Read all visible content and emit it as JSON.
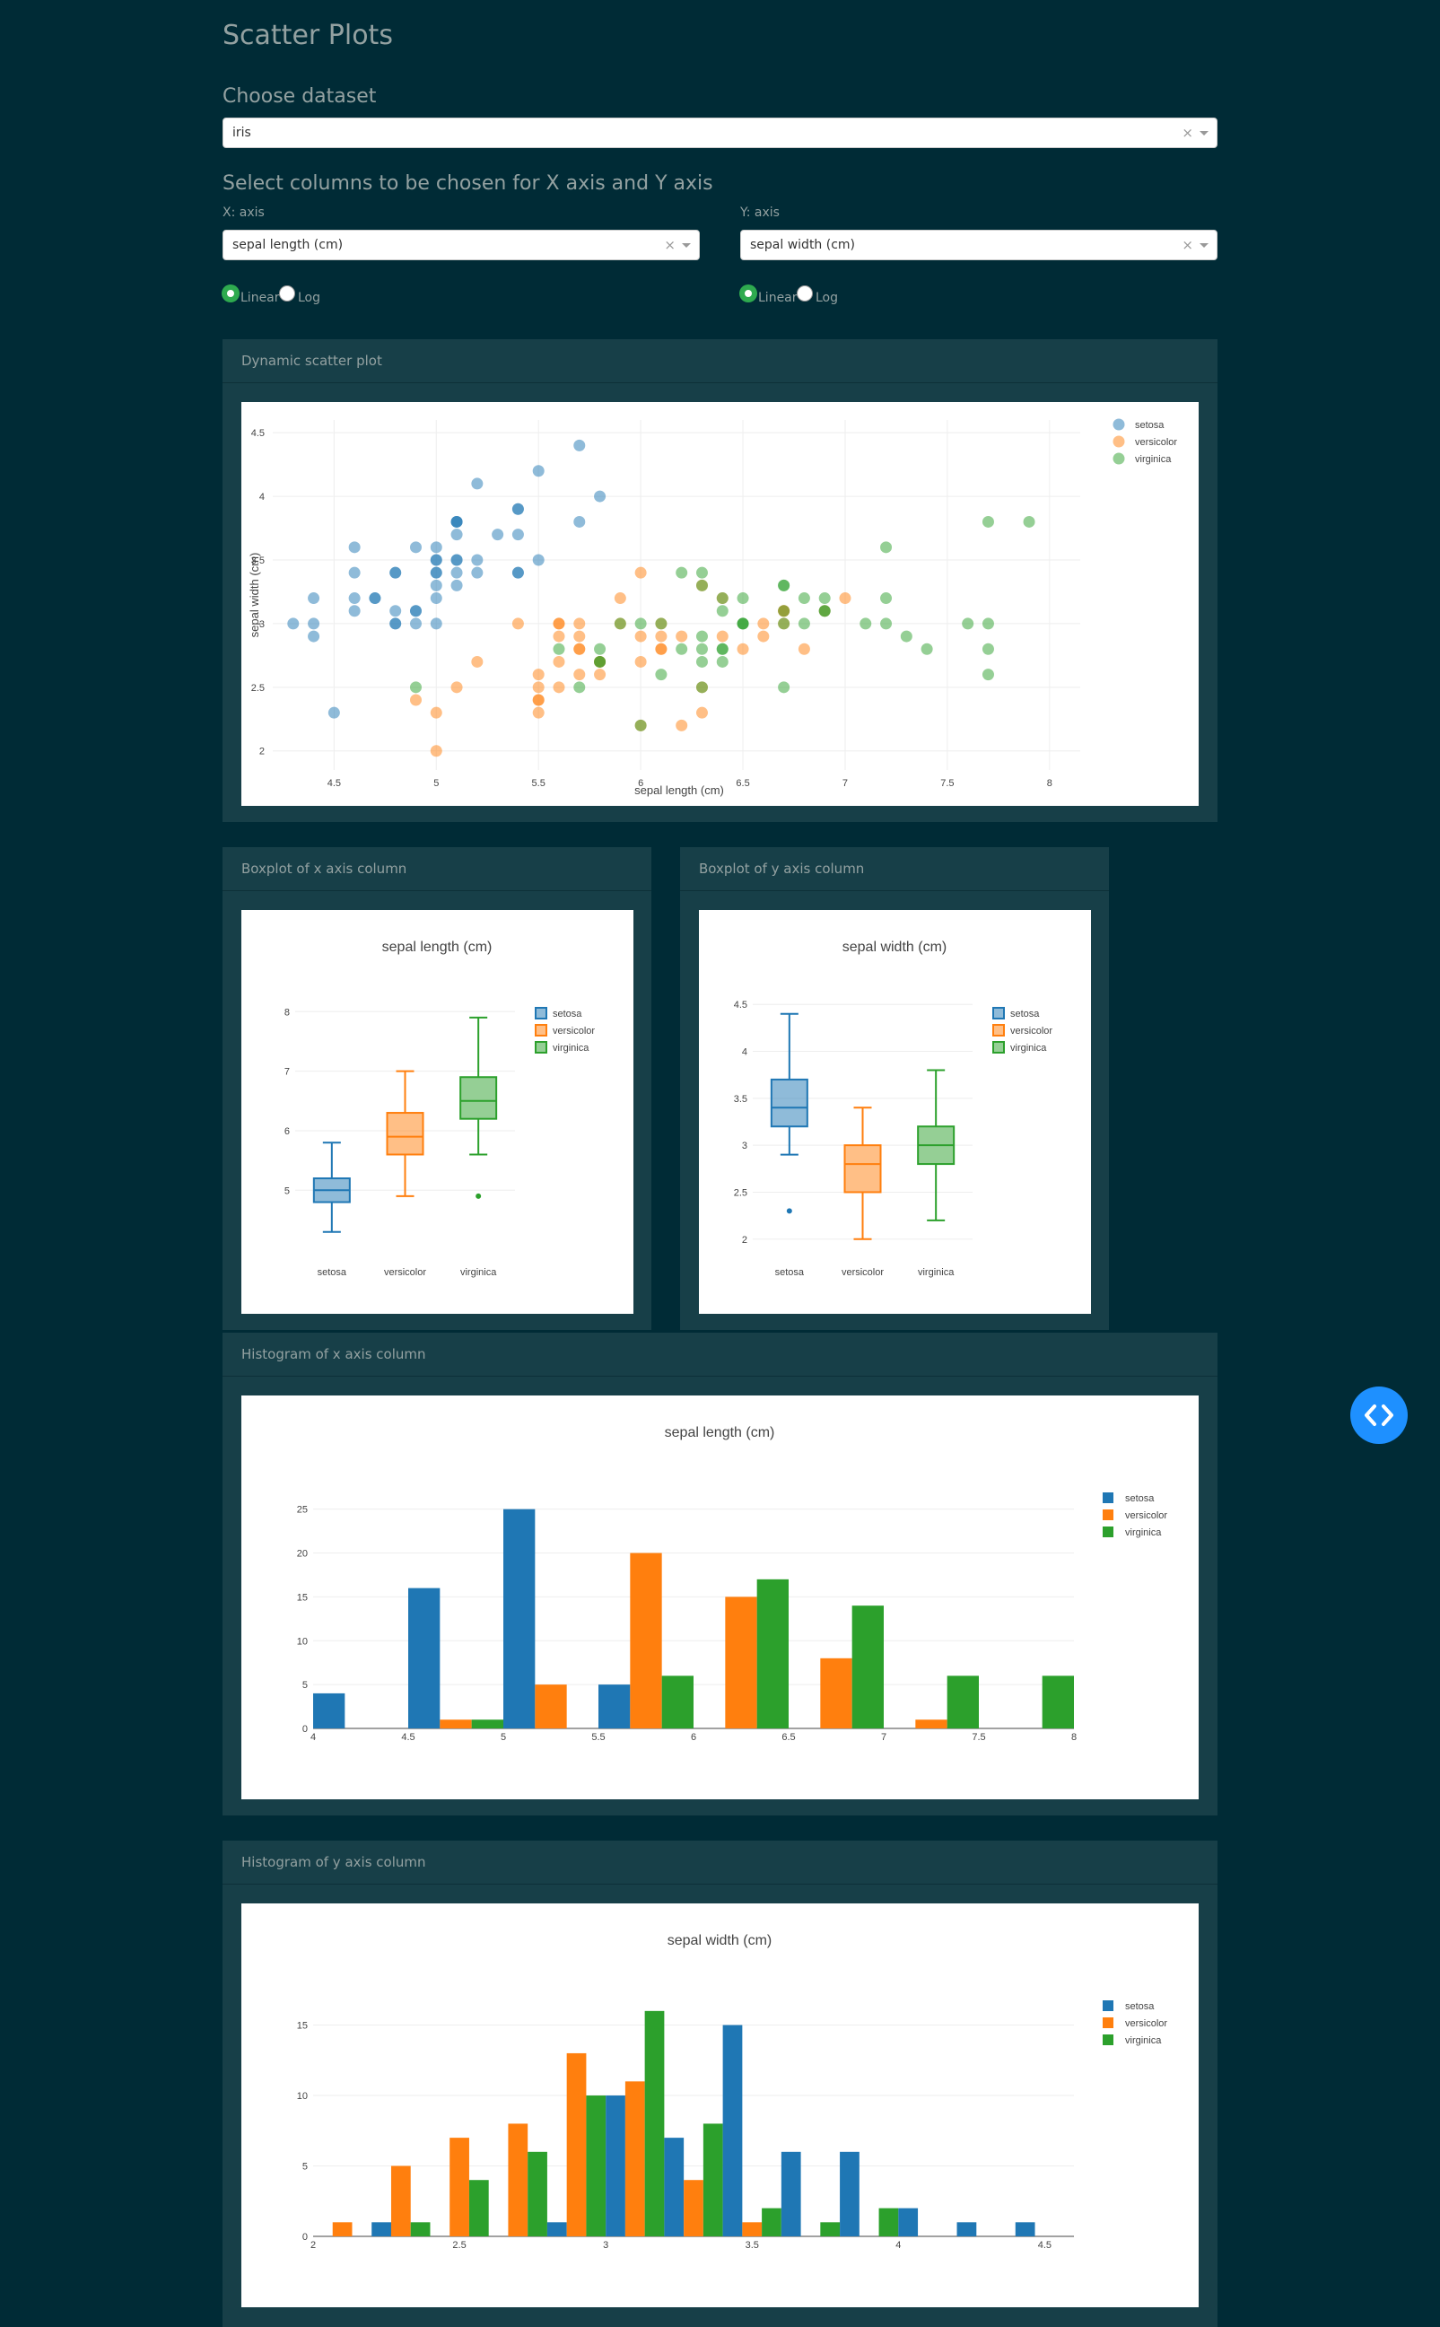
{
  "page": {
    "title": "Scatter Plots"
  },
  "dataset": {
    "label": "Choose dataset",
    "value": "iris",
    "clear": "×"
  },
  "columns": {
    "label": "Select columns to be chosen for X axis and Y axis",
    "x": {
      "label": "X: axis",
      "value": "sepal length (cm)",
      "clear": "×",
      "scale_options": [
        "Linear",
        "Log"
      ],
      "scale_selected": "Linear"
    },
    "y": {
      "label": "Y: axis",
      "value": "sepal width (cm)",
      "clear": "×",
      "scale_options": [
        "Linear",
        "Log"
      ],
      "scale_selected": "Linear"
    }
  },
  "panels": {
    "scatter": "Dynamic scatter plot",
    "box_x": "Boxplot of x axis column",
    "box_y": "Boxplot of y axis column",
    "hist_x": "Histogram of x axis column",
    "hist_y": "Histogram of y axis column"
  },
  "colors": {
    "setosa": "#1f77b4",
    "versicolor": "#ff7f0e",
    "virginica": "#2ca02c",
    "background": "#002b36",
    "panel": "#173f48",
    "accent": "#2eaa4f",
    "fab": "#1e90ff"
  },
  "icons": {
    "fab": "code-toggle-icon"
  },
  "chart_data": [
    {
      "type": "scatter",
      "xlabel": "sepal length (cm)",
      "ylabel": "sepal width (cm)",
      "xlim": [
        4.2,
        8.15
      ],
      "ylim": [
        1.85,
        4.6
      ],
      "xticks": [
        4.5,
        5,
        5.5,
        6,
        6.5,
        7,
        7.5,
        8
      ],
      "yticks": [
        2,
        2.5,
        3,
        3.5,
        4,
        4.5
      ],
      "legend": "top-right",
      "series": [
        {
          "name": "setosa",
          "x": [
            5.1,
            4.9,
            4.7,
            4.6,
            5.0,
            5.4,
            4.6,
            5.0,
            4.4,
            4.9,
            5.4,
            4.8,
            4.8,
            4.3,
            5.8,
            5.7,
            5.4,
            5.1,
            5.7,
            5.1,
            5.4,
            5.1,
            4.6,
            5.1,
            4.8,
            5.0,
            5.0,
            5.2,
            5.2,
            4.7,
            4.8,
            5.4,
            5.2,
            5.5,
            4.9,
            5.0,
            5.5,
            4.9,
            4.4,
            5.1,
            5.0,
            4.5,
            4.4,
            5.0,
            5.1,
            4.8,
            5.1,
            4.6,
            5.3,
            5.0
          ],
          "y": [
            3.5,
            3.0,
            3.2,
            3.1,
            3.6,
            3.9,
            3.4,
            3.4,
            2.9,
            3.1,
            3.7,
            3.4,
            3.0,
            3.0,
            4.0,
            4.4,
            3.9,
            3.5,
            3.8,
            3.8,
            3.4,
            3.7,
            3.6,
            3.3,
            3.4,
            3.0,
            3.4,
            3.5,
            3.4,
            3.2,
            3.1,
            3.4,
            4.1,
            4.2,
            3.1,
            3.2,
            3.5,
            3.6,
            3.0,
            3.4,
            3.5,
            2.3,
            3.2,
            3.5,
            3.8,
            3.0,
            3.8,
            3.2,
            3.7,
            3.3
          ]
        },
        {
          "name": "versicolor",
          "x": [
            7.0,
            6.4,
            6.9,
            5.5,
            6.5,
            5.7,
            6.3,
            4.9,
            6.6,
            5.2,
            5.0,
            5.9,
            6.0,
            6.1,
            5.6,
            6.7,
            5.6,
            5.8,
            6.2,
            5.6,
            5.9,
            6.1,
            6.3,
            6.1,
            6.4,
            6.6,
            6.8,
            6.7,
            6.0,
            5.7,
            5.5,
            5.5,
            5.8,
            6.0,
            5.4,
            6.0,
            6.7,
            6.3,
            5.6,
            5.5,
            5.5,
            6.1,
            5.8,
            5.0,
            5.6,
            5.7,
            5.7,
            6.2,
            5.1,
            5.7
          ],
          "y": [
            3.2,
            3.2,
            3.1,
            2.3,
            2.8,
            2.8,
            3.3,
            2.4,
            2.9,
            2.7,
            2.0,
            3.0,
            2.2,
            2.9,
            2.9,
            3.1,
            3.0,
            2.7,
            2.2,
            2.5,
            3.2,
            2.8,
            2.5,
            2.8,
            2.9,
            3.0,
            2.8,
            3.0,
            2.9,
            2.6,
            2.4,
            2.4,
            2.7,
            2.7,
            3.0,
            3.4,
            3.1,
            2.3,
            3.0,
            2.5,
            2.6,
            3.0,
            2.6,
            2.3,
            2.7,
            3.0,
            2.9,
            2.9,
            2.5,
            2.8
          ]
        },
        {
          "name": "virginica",
          "x": [
            6.3,
            5.8,
            7.1,
            6.3,
            6.5,
            7.6,
            4.9,
            7.3,
            6.7,
            7.2,
            6.5,
            6.4,
            6.8,
            5.7,
            5.8,
            6.4,
            6.5,
            7.7,
            7.7,
            6.0,
            6.9,
            5.6,
            7.7,
            6.3,
            6.7,
            7.2,
            6.2,
            6.1,
            6.4,
            7.2,
            7.4,
            7.9,
            6.4,
            6.3,
            6.1,
            7.7,
            6.3,
            6.4,
            6.0,
            6.9,
            6.7,
            6.9,
            5.8,
            6.8,
            6.7,
            6.7,
            6.3,
            6.5,
            6.2,
            5.9
          ],
          "y": [
            3.3,
            2.7,
            3.0,
            2.9,
            3.0,
            3.0,
            2.5,
            2.9,
            2.5,
            3.6,
            3.2,
            2.7,
            3.0,
            2.5,
            2.8,
            3.2,
            3.0,
            3.8,
            2.6,
            2.2,
            3.2,
            2.8,
            2.8,
            2.7,
            3.3,
            3.2,
            2.8,
            3.0,
            2.8,
            3.0,
            2.8,
            3.8,
            2.8,
            2.8,
            2.6,
            3.0,
            3.4,
            3.1,
            3.0,
            3.1,
            3.1,
            3.1,
            2.7,
            3.2,
            3.3,
            3.0,
            2.5,
            3.0,
            3.4,
            3.0
          ]
        }
      ]
    },
    {
      "type": "box",
      "title": "sepal length (cm)",
      "categories": [
        "setosa",
        "versicolor",
        "virginica"
      ],
      "ylim": [
        4.1,
        8.2
      ],
      "yticks": [
        5,
        6,
        7,
        8
      ],
      "legend": "top-right",
      "boxes": [
        {
          "name": "setosa",
          "min": 4.3,
          "q1": 4.8,
          "median": 5.0,
          "q3": 5.2,
          "max": 5.8,
          "outliers": []
        },
        {
          "name": "versicolor",
          "min": 4.9,
          "q1": 5.6,
          "median": 5.9,
          "q3": 6.3,
          "max": 7.0,
          "outliers": []
        },
        {
          "name": "virginica",
          "min": 5.6,
          "q1": 6.2,
          "median": 6.5,
          "q3": 6.9,
          "max": 7.9,
          "outliers": [
            4.9
          ]
        }
      ]
    },
    {
      "type": "box",
      "title": "sepal width (cm)",
      "categories": [
        "setosa",
        "versicolor",
        "virginica"
      ],
      "ylim": [
        1.95,
        4.55
      ],
      "yticks": [
        2,
        2.5,
        3,
        3.5,
        4,
        4.5
      ],
      "legend": "top-right",
      "boxes": [
        {
          "name": "setosa",
          "min": 2.9,
          "q1": 3.2,
          "median": 3.4,
          "q3": 3.7,
          "max": 4.4,
          "outliers": [
            2.3
          ]
        },
        {
          "name": "versicolor",
          "min": 2.0,
          "q1": 2.5,
          "median": 2.8,
          "q3": 3.0,
          "max": 3.4,
          "outliers": []
        },
        {
          "name": "virginica",
          "min": 2.2,
          "q1": 2.8,
          "median": 3.0,
          "q3": 3.2,
          "max": 3.8,
          "outliers": []
        }
      ]
    },
    {
      "type": "bar",
      "title": "sepal length (cm)",
      "bin_edges": [
        4,
        4.5,
        5,
        5.5,
        6,
        6.5,
        7,
        7.5,
        8
      ],
      "xlim": [
        4,
        8
      ],
      "ylim": [
        0,
        26.5
      ],
      "xticks": [
        4,
        4.5,
        5,
        5.5,
        6,
        6.5,
        7,
        7.5,
        8
      ],
      "yticks": [
        0,
        5,
        10,
        15,
        20,
        25
      ],
      "legend": "top-right",
      "series": [
        {
          "name": "setosa",
          "values": [
            4,
            16,
            25,
            5,
            0,
            0,
            0,
            0
          ]
        },
        {
          "name": "versicolor",
          "values": [
            0,
            1,
            5,
            20,
            15,
            8,
            1,
            0
          ]
        },
        {
          "name": "virginica",
          "values": [
            0,
            1,
            0,
            6,
            17,
            14,
            6,
            6
          ]
        }
      ]
    },
    {
      "type": "bar",
      "title": "sepal width (cm)",
      "bin_edges": [
        2,
        2.2,
        2.4,
        2.6,
        2.8,
        3.0,
        3.2,
        3.4,
        3.6,
        3.8,
        4.0,
        4.2,
        4.4,
        4.6
      ],
      "xlim": [
        2,
        4.6
      ],
      "ylim": [
        0,
        16.5
      ],
      "xticks": [
        2,
        2.5,
        3,
        3.5,
        4,
        4.5
      ],
      "yticks": [
        0,
        5,
        10,
        15
      ],
      "legend": "top-right",
      "series": [
        {
          "name": "setosa",
          "values": [
            0,
            1,
            0,
            0,
            1,
            10,
            7,
            15,
            6,
            6,
            2,
            1,
            1
          ]
        },
        {
          "name": "versicolor",
          "values": [
            1,
            5,
            7,
            8,
            13,
            11,
            4,
            1,
            0,
            0,
            0,
            0,
            0
          ]
        },
        {
          "name": "virginica",
          "values": [
            0,
            1,
            4,
            6,
            10,
            16,
            8,
            2,
            1,
            2,
            0,
            0,
            0
          ]
        }
      ]
    }
  ]
}
